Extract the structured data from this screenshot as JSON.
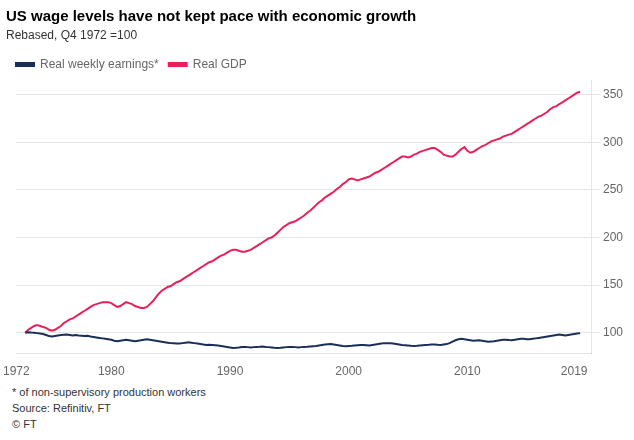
{
  "chart_data": {
    "type": "line",
    "title": "US wage levels have not kept pace with economic growth",
    "subtitle": "Rebased, Q4 1972 =100",
    "footnotes": [
      "* of non-supervisory production workers",
      "Source: Refinitiv, FT",
      "© FT"
    ],
    "legend": "upper left",
    "grid": true,
    "xlim": [
      1972,
      2020.5
    ],
    "xticks": [
      1972,
      1980,
      1990,
      2000,
      2010,
      2019
    ],
    "ylim": [
      78,
      365
    ],
    "yticks": [
      100,
      150,
      200,
      250,
      300,
      350
    ],
    "x": [
      1972.75,
      1973.0,
      1973.25,
      1973.5,
      1973.75,
      1974.0,
      1974.25,
      1974.5,
      1974.75,
      1975.0,
      1975.25,
      1975.5,
      1975.75,
      1976.0,
      1976.25,
      1976.5,
      1976.75,
      1977.0,
      1977.25,
      1977.5,
      1977.75,
      1978.0,
      1978.25,
      1978.5,
      1978.75,
      1979.0,
      1979.25,
      1979.5,
      1979.75,
      1980.0,
      1980.25,
      1980.5,
      1980.75,
      1981.0,
      1981.25,
      1981.5,
      1981.75,
      1982.0,
      1982.25,
      1982.5,
      1982.75,
      1983.0,
      1983.25,
      1983.5,
      1983.75,
      1984.0,
      1984.25,
      1984.5,
      1984.75,
      1985.0,
      1985.25,
      1985.5,
      1985.75,
      1986.0,
      1986.25,
      1986.5,
      1986.75,
      1987.0,
      1987.25,
      1987.5,
      1987.75,
      1988.0,
      1988.25,
      1988.5,
      1988.75,
      1989.0,
      1989.25,
      1989.5,
      1989.75,
      1990.0,
      1990.25,
      1990.5,
      1990.75,
      1991.0,
      1991.25,
      1991.5,
      1991.75,
      1992.0,
      1992.25,
      1992.5,
      1992.75,
      1993.0,
      1993.25,
      1993.5,
      1993.75,
      1994.0,
      1994.25,
      1994.5,
      1994.75,
      1995.0,
      1995.25,
      1995.5,
      1995.75,
      1996.0,
      1996.25,
      1996.5,
      1996.75,
      1997.0,
      1997.25,
      1997.5,
      1997.75,
      1998.0,
      1998.25,
      1998.5,
      1998.75,
      1999.0,
      1999.25,
      1999.5,
      1999.75,
      2000.0,
      2000.25,
      2000.5,
      2000.75,
      2001.0,
      2001.25,
      2001.5,
      2001.75,
      2002.0,
      2002.25,
      2002.5,
      2002.75,
      2003.0,
      2003.25,
      2003.5,
      2003.75,
      2004.0,
      2004.25,
      2004.5,
      2004.75,
      2005.0,
      2005.25,
      2005.5,
      2005.75,
      2006.0,
      2006.25,
      2006.5,
      2006.75,
      2007.0,
      2007.25,
      2007.5,
      2007.75,
      2008.0,
      2008.25,
      2008.5,
      2008.75,
      2009.0,
      2009.25,
      2009.5,
      2009.75,
      2010.0,
      2010.25,
      2010.5,
      2010.75,
      2011.0,
      2011.25,
      2011.5,
      2011.75,
      2012.0,
      2012.25,
      2012.5,
      2012.75,
      2013.0,
      2013.25,
      2013.5,
      2013.75,
      2014.0,
      2014.25,
      2014.5,
      2014.75,
      2015.0,
      2015.25,
      2015.5,
      2015.75,
      2016.0,
      2016.25,
      2016.5,
      2016.75,
      2017.0,
      2017.25,
      2017.5,
      2017.75,
      2018.0,
      2018.25,
      2018.5,
      2018.75,
      2019.0,
      2019.25,
      2019.5
    ],
    "series": [
      {
        "name": "Real weekly earnings*",
        "color": "#1a2e5a",
        "values": [
          100,
          100.5,
          100.2,
          100.0,
          99.5,
          99.0,
          98.5,
          97.5,
          96.5,
          96.0,
          96.5,
          97.0,
          97.5,
          97.8,
          98.0,
          97.5,
          97.0,
          97.5,
          97.0,
          96.8,
          96.5,
          96.8,
          96.0,
          95.5,
          95.0,
          94.5,
          94.0,
          93.5,
          93.0,
          92.5,
          91.5,
          91.0,
          91.5,
          92.0,
          92.5,
          92.0,
          91.5,
          91.0,
          91.5,
          92.0,
          92.5,
          93.0,
          92.5,
          92.0,
          91.5,
          91.0,
          90.5,
          90.0,
          89.5,
          89.0,
          88.8,
          88.5,
          88.5,
          89.0,
          89.5,
          89.8,
          89.5,
          89.0,
          88.5,
          88.0,
          87.5,
          87.0,
          87.2,
          87.0,
          86.8,
          86.5,
          86.0,
          85.5,
          85.0,
          84.5,
          84.0,
          84.2,
          84.5,
          85.0,
          85.0,
          84.8,
          84.5,
          84.8,
          85.0,
          85.2,
          85.5,
          85.0,
          84.8,
          84.5,
          84.2,
          84.0,
          84.2,
          84.5,
          84.8,
          85.0,
          85.0,
          84.8,
          84.5,
          84.8,
          85.0,
          85.2,
          85.5,
          85.8,
          86.0,
          86.5,
          87.0,
          87.5,
          87.8,
          88.0,
          87.5,
          87.0,
          86.5,
          86.0,
          85.8,
          86.0,
          86.2,
          86.5,
          86.8,
          87.0,
          87.0,
          86.8,
          86.5,
          87.0,
          87.5,
          88.0,
          88.5,
          89.0,
          89.0,
          88.8,
          88.5,
          88.0,
          87.5,
          87.0,
          86.8,
          86.5,
          86.2,
          86.0,
          86.2,
          86.5,
          86.8,
          87.0,
          87.2,
          87.5,
          87.5,
          87.2,
          87.0,
          87.5,
          88.0,
          89.0,
          90.5,
          92.0,
          93.0,
          93.5,
          93.0,
          92.5,
          92.0,
          91.5,
          91.8,
          92.0,
          91.5,
          91.0,
          90.5,
          90.8,
          91.0,
          91.5,
          92.0,
          92.5,
          92.5,
          92.2,
          92.0,
          92.5,
          93.0,
          93.5,
          93.5,
          93.2,
          93.0,
          93.5,
          94.0,
          94.5,
          95.0,
          95.5,
          96.0,
          96.5,
          97.0,
          97.5,
          98.0,
          97.5,
          97.0,
          97.5,
          98.0,
          98.5,
          99.0,
          99.5
        ]
      },
      {
        "name": "Real GDP",
        "color": "#e8215a",
        "values": [
          100,
          103,
          105,
          107,
          108,
          107,
          106,
          105,
          103,
          102,
          103,
          105,
          107,
          110,
          112,
          114,
          115,
          117,
          119,
          121,
          123,
          125,
          127,
          129,
          130,
          131,
          132,
          132,
          132,
          131,
          129,
          127,
          128,
          130,
          132,
          131,
          130,
          128,
          127,
          126,
          126,
          127,
          130,
          133,
          137,
          141,
          144,
          146,
          148,
          149,
          151,
          153,
          154,
          156,
          158,
          160,
          162,
          164,
          166,
          168,
          170,
          172,
          174,
          175,
          177,
          179,
          181,
          182,
          184,
          186,
          187,
          187,
          186,
          185,
          185,
          186,
          187,
          189,
          191,
          193,
          195,
          197,
          199,
          200,
          202,
          205,
          208,
          211,
          213,
          215,
          216,
          217,
          219,
          221,
          223,
          226,
          228,
          231,
          234,
          237,
          239,
          242,
          244,
          246,
          248,
          251,
          253,
          256,
          258,
          261,
          262,
          261,
          260,
          261,
          262,
          263,
          264,
          266,
          268,
          269,
          271,
          273,
          275,
          277,
          279,
          281,
          283,
          285,
          285,
          284,
          285,
          287,
          288,
          290,
          291,
          292,
          293,
          294,
          294,
          292,
          290,
          287,
          286,
          285,
          285,
          287,
          290,
          293,
          295,
          291,
          289,
          290,
          292,
          294,
          296,
          297,
          299,
          301,
          302,
          303,
          304,
          306,
          307,
          308,
          309,
          311,
          313,
          315,
          317,
          319,
          321,
          323,
          325,
          327,
          328,
          330,
          332,
          335,
          337,
          338,
          340,
          342,
          344,
          346,
          348,
          350,
          352,
          353
        ]
      }
    ]
  }
}
